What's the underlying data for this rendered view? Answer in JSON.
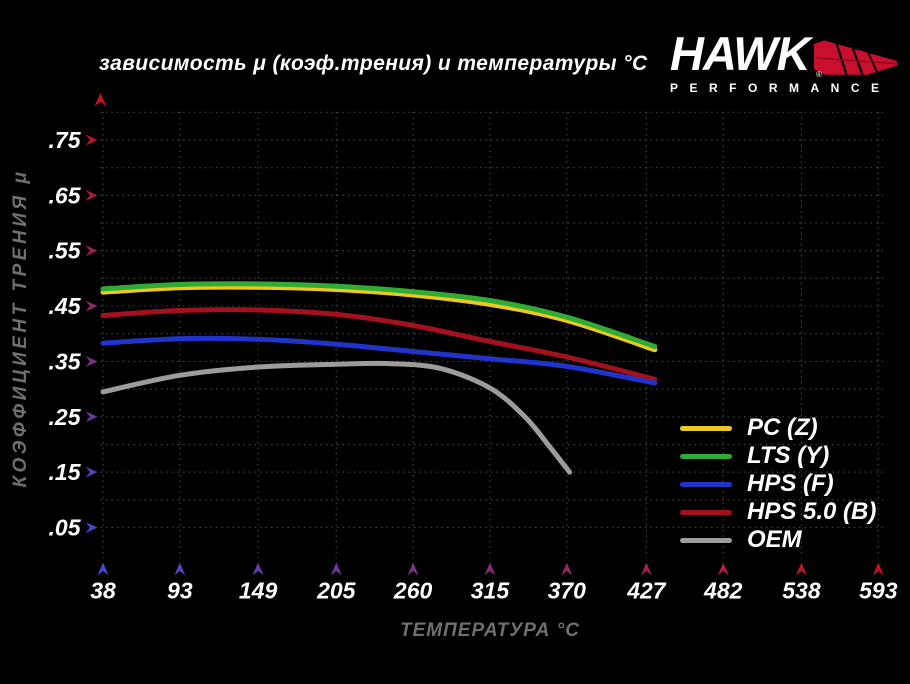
{
  "page": {
    "background": "#000000"
  },
  "logo": {
    "brand": "HAWK",
    "tagline": "PERFORMANCE",
    "registered_mark": "®",
    "wing_color": "#c8102e",
    "text_color": "#ffffff"
  },
  "chart_data": {
    "type": "line",
    "title": "зависимость μ (коэф.трения) и температуры °C",
    "xlabel": "ТЕМПЕРАТУРА °C",
    "ylabel": "КОЭФФИЦИЕНТ ТРЕНИЯ μ",
    "x_ticks": [
      38,
      93,
      149,
      205,
      260,
      315,
      370,
      427,
      482,
      538,
      593
    ],
    "y_ticks": [
      {
        "label": ".05",
        "value": 0.05
      },
      {
        "label": ".15",
        "value": 0.15
      },
      {
        "label": ".25",
        "value": 0.25
      },
      {
        "label": ".35",
        "value": 0.35
      },
      {
        "label": ".45",
        "value": 0.45
      },
      {
        "label": ".55",
        "value": 0.55
      },
      {
        "label": ".65",
        "value": 0.65
      },
      {
        "label": ".75",
        "value": 0.75
      }
    ],
    "xlim": [
      38,
      593
    ],
    "ylim": [
      0,
      0.8
    ],
    "grid": {
      "style": "dotted",
      "color": "#424242",
      "horizontal_step": 0.05,
      "vertical_at_x_ticks": true
    },
    "axis_gradient": {
      "cool_end": "#4a4ace",
      "warm_end": "#c1121f"
    },
    "tick_label_color": "#ffffff",
    "axis_title_color": "#6f6f6f",
    "legend_position": "inside lower right",
    "series": [
      {
        "name": "PC (Z)",
        "color": "#eec81f",
        "x": [
          38,
          93,
          149,
          205,
          260,
          315,
          370,
          433
        ],
        "values": [
          0.475,
          0.483,
          0.484,
          0.48,
          0.47,
          0.453,
          0.424,
          0.371
        ]
      },
      {
        "name": "LTS (Y)",
        "color": "#30ab33",
        "x": [
          38,
          93,
          149,
          205,
          260,
          315,
          370,
          433
        ],
        "values": [
          0.481,
          0.489,
          0.49,
          0.486,
          0.476,
          0.46,
          0.43,
          0.377
        ]
      },
      {
        "name": "HPS (F)",
        "color": "#2034cc",
        "x": [
          38,
          93,
          149,
          205,
          260,
          315,
          370,
          433
        ],
        "values": [
          0.383,
          0.391,
          0.39,
          0.381,
          0.368,
          0.355,
          0.341,
          0.311
        ]
      },
      {
        "name": "HPS 5.0 (B)",
        "color": "#a3101e",
        "x": [
          38,
          93,
          149,
          205,
          260,
          315,
          370,
          433
        ],
        "values": [
          0.433,
          0.442,
          0.443,
          0.435,
          0.415,
          0.386,
          0.358,
          0.318
        ]
      },
      {
        "name": "OEM",
        "color": "#9c9c9c",
        "x": [
          38,
          93,
          149,
          205,
          245,
          280,
          315,
          340,
          358,
          372
        ],
        "values": [
          0.295,
          0.325,
          0.34,
          0.345,
          0.346,
          0.337,
          0.302,
          0.25,
          0.195,
          0.15
        ]
      }
    ],
    "draw_order": [
      4,
      3,
      2,
      0,
      1
    ]
  }
}
